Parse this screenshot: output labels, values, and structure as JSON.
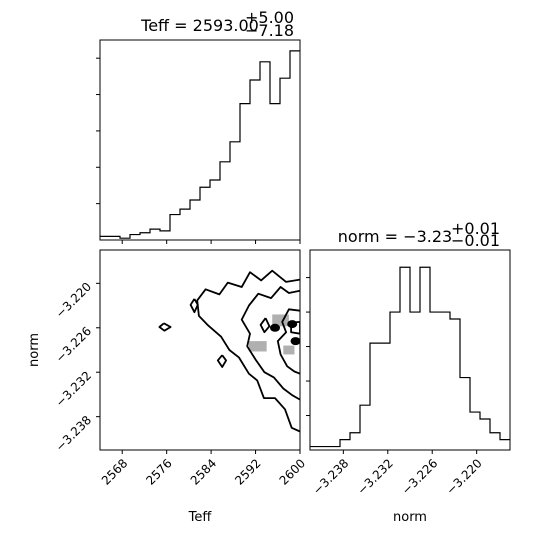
{
  "chart_data": {
    "type": "corner",
    "parameters": [
      "Teff",
      "norm"
    ],
    "titles": {
      "teff": {
        "base": "Teff = 2593.00",
        "sup": "+5.00",
        "sub": "−7.18"
      },
      "norm": {
        "base": "norm = −3.23",
        "sup": "+0.01",
        "sub": "−0.01"
      }
    },
    "axis_labels": {
      "x_bottom_left": "Teff",
      "y_left": "norm",
      "x_bottom_right": "norm"
    },
    "teff_axis": {
      "range": [
        2564,
        2600
      ],
      "ticks": [
        2568,
        2576,
        2584,
        2592,
        2600
      ],
      "tick_labels": [
        "2568",
        "2576",
        "2584",
        "2592",
        "2600"
      ]
    },
    "norm_axis": {
      "range": [
        -3.2425,
        -3.2155
      ],
      "ticks": [
        -3.22,
        -3.226,
        -3.232,
        -3.238
      ],
      "tick_labels": [
        "−3.220",
        "−3.226",
        "−3.232",
        "−3.238"
      ],
      "bottom_ticks": [
        -3.238,
        -3.232,
        -3.226,
        -3.22
      ],
      "bottom_tick_labels": [
        "−3.238",
        "−3.232",
        "−3.226",
        "−3.220"
      ]
    },
    "teff_hist": {
      "edges": [
        2564,
        2565.8,
        2567.6,
        2569.4,
        2571.2,
        2573.0,
        2574.8,
        2576.6,
        2578.4,
        2580.2,
        2582.0,
        2583.8,
        2585.6,
        2587.4,
        2589.2,
        2591.0,
        2592.8,
        2594.6,
        2596.4,
        2598.2,
        2600
      ],
      "counts": [
        2,
        2,
        1,
        3,
        4,
        6,
        5,
        14,
        17,
        22,
        29,
        33,
        43,
        54,
        75,
        88,
        98,
        75,
        89,
        104
      ],
      "ymax": 110,
      "ticks": [
        20,
        40,
        60,
        80,
        100
      ]
    },
    "norm_hist": {
      "edges": [
        -3.2425,
        -3.24115,
        -3.2398,
        -3.23845,
        -3.2371,
        -3.23575,
        -3.2344,
        -3.23305,
        -3.2317,
        -3.23035,
        -3.229,
        -3.22765,
        -3.2263,
        -3.22495,
        -3.2236,
        -3.22225,
        -3.2209,
        -3.21955,
        -3.2182,
        -3.21685,
        -3.2155
      ],
      "counts": [
        1,
        1,
        1,
        3,
        5,
        13,
        31,
        31,
        40,
        53,
        40,
        53,
        40,
        40,
        38,
        21,
        11,
        9,
        5,
        3
      ],
      "ymax": 58,
      "ticks": [
        10,
        20,
        30,
        40,
        50
      ]
    },
    "contours": [
      {
        "level": "outer",
        "points": [
          [
            2600,
            -3.2195
          ],
          [
            2597.5,
            -3.2198
          ],
          [
            2595.0,
            -3.2183
          ],
          [
            2593.0,
            -3.2196
          ],
          [
            2591.0,
            -3.2185
          ],
          [
            2589.5,
            -3.2205
          ],
          [
            2587.0,
            -3.2199
          ],
          [
            2585.5,
            -3.2215
          ],
          [
            2583.0,
            -3.2208
          ],
          [
            2581.5,
            -3.2223
          ],
          [
            2581.8,
            -3.2244
          ],
          [
            2583.5,
            -3.2257
          ],
          [
            2585.8,
            -3.2272
          ],
          [
            2587.3,
            -3.229
          ],
          [
            2589.0,
            -3.23
          ],
          [
            2590.8,
            -3.2322
          ],
          [
            2592.3,
            -3.2331
          ],
          [
            2593.5,
            -3.2355
          ],
          [
            2595.5,
            -3.2355
          ],
          [
            2597.3,
            -3.237
          ],
          [
            2598.5,
            -3.2395
          ],
          [
            2600,
            -3.24
          ]
        ]
      },
      {
        "level": "mid",
        "points": [
          [
            2600,
            -3.221
          ],
          [
            2598.0,
            -3.2213
          ],
          [
            2596.5,
            -3.2205
          ],
          [
            2594.8,
            -3.222
          ],
          [
            2592.5,
            -3.2214
          ],
          [
            2590.8,
            -3.223
          ],
          [
            2589.5,
            -3.2249
          ],
          [
            2591.0,
            -3.2268
          ],
          [
            2590.5,
            -3.2285
          ],
          [
            2592.0,
            -3.2303
          ],
          [
            2593.6,
            -3.232
          ],
          [
            2595.3,
            -3.2327
          ],
          [
            2597.0,
            -3.2342
          ],
          [
            2598.6,
            -3.2351
          ],
          [
            2600,
            -3.2357
          ]
        ]
      },
      {
        "level": "inner",
        "points": [
          [
            2600,
            -3.2237
          ],
          [
            2598.0,
            -3.2235
          ],
          [
            2596.8,
            -3.2252
          ],
          [
            2597.5,
            -3.2266
          ],
          [
            2596.0,
            -3.2278
          ],
          [
            2596.5,
            -3.2296
          ],
          [
            2597.7,
            -3.2312
          ],
          [
            2599.0,
            -3.2319
          ],
          [
            2600,
            -3.2322
          ]
        ]
      },
      {
        "level": "island",
        "points": [
          [
            2581.0,
            -3.2221
          ],
          [
            2581.6,
            -3.2229
          ],
          [
            2581.0,
            -3.2239
          ],
          [
            2580.3,
            -3.2229
          ],
          [
            2581.0,
            -3.2221
          ]
        ]
      },
      {
        "level": "island",
        "points": [
          [
            2575.5,
            -3.2254
          ],
          [
            2576.7,
            -3.2259
          ],
          [
            2575.6,
            -3.2264
          ],
          [
            2574.7,
            -3.2259
          ],
          [
            2575.5,
            -3.2254
          ]
        ]
      },
      {
        "level": "island",
        "points": [
          [
            2586.0,
            -3.2297
          ],
          [
            2586.7,
            -3.2304
          ],
          [
            2586.0,
            -3.2313
          ],
          [
            2585.2,
            -3.2304
          ],
          [
            2586.0,
            -3.2297
          ]
        ]
      },
      {
        "level": "island",
        "points": [
          [
            2593.8,
            -3.2247
          ],
          [
            2594.5,
            -3.2258
          ],
          [
            2593.6,
            -3.2266
          ],
          [
            2592.9,
            -3.2256
          ],
          [
            2593.8,
            -3.2247
          ]
        ]
      },
      {
        "level": "island",
        "points": [
          [
            2598.4,
            -3.2253
          ],
          [
            2600,
            -3.2252
          ],
          [
            2600,
            -3.2268
          ],
          [
            2598.4,
            -3.2266
          ],
          [
            2598.4,
            -3.2253
          ]
        ]
      }
    ],
    "peaks": [
      [
        2599.2,
        -3.2278
      ],
      [
        2595.5,
        -3.226
      ],
      [
        2598.6,
        -3.2255
      ]
    ],
    "dense_cells": [
      [
        2592.4,
        -3.2285,
        3.2,
        0.0014
      ],
      [
        2596.5,
        -3.225,
        3.0,
        0.0016
      ],
      [
        2598.0,
        -3.229,
        2.0,
        0.0012
      ]
    ]
  }
}
